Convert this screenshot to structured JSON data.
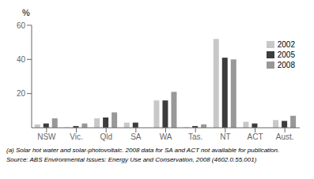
{
  "chart_data": {
    "type": "bar",
    "y_label": "%",
    "categories": [
      "NSW",
      "Vic.",
      "Qld",
      "SA",
      "WA",
      "Tas.",
      "NT",
      "ACT",
      "Aust."
    ],
    "series": [
      {
        "name": "2002",
        "color": "#c8c8c8",
        "values": [
          2.0,
          0.3,
          5.5,
          3.0,
          16.0,
          0.3,
          52.0,
          3.5,
          4.5
        ]
      },
      {
        "name": "2005",
        "color": "#3c3c3c",
        "values": [
          2.5,
          1.0,
          6.0,
          3.0,
          16.0,
          1.0,
          41.0,
          2.5,
          4.0
        ]
      },
      {
        "name": "2008",
        "color": "#989898",
        "values": [
          5.5,
          2.5,
          9.0,
          null,
          21.0,
          2.0,
          40.0,
          null,
          7.0
        ]
      }
    ],
    "ylim": [
      0,
      60
    ],
    "yticks": [
      20,
      40,
      60
    ],
    "grid": false,
    "legend": "upper right",
    "annotations": [
      "(a) Solar hot water and solar-photovoltaic. 2008 data for SA and ACT not available for publication.",
      "Source: ABS Environmental Issues: Energy Use and Conservation, 2008 (4602.0.55.001)"
    ]
  }
}
